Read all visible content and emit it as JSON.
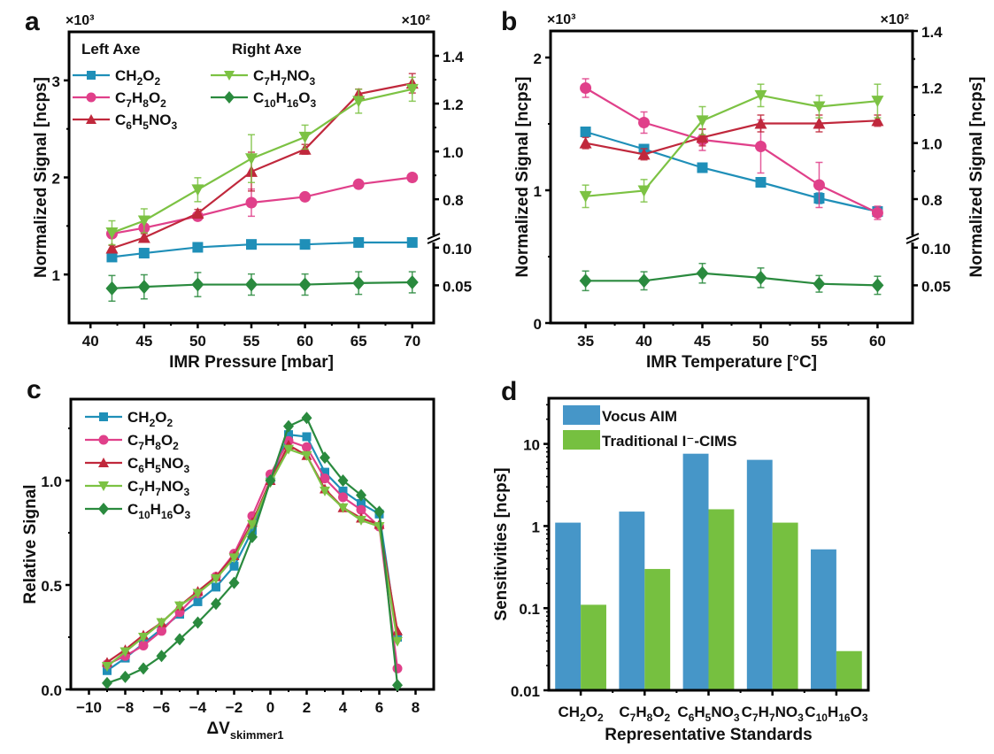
{
  "figure": {
    "panels": [
      "a",
      "b",
      "c",
      "d"
    ]
  },
  "colors": {
    "CH2O2": "#1f8fb8",
    "C7H8O2": "#e0408a",
    "C6H5NO3": "#c0283c",
    "C7H7NO3": "#7cc243",
    "C10H16O3": "#2a8a3e",
    "vocus": "#4696c8",
    "traditional": "#76c040"
  },
  "chart_data": [
    {
      "panel": "a",
      "type": "line",
      "title": "",
      "xlabel": "IMR Pressure [mbar]",
      "ylabel": "Normalized Signal [ncps]",
      "y_multiplier_left": "×10³",
      "y_multiplier_right": "×10²",
      "xlim": [
        38,
        72
      ],
      "x_ticks": [
        40,
        45,
        50,
        55,
        60,
        65,
        70
      ],
      "ylim_left": [
        0.5,
        3.5
      ],
      "y_ticks_left": [
        1,
        2,
        3
      ],
      "ylim_right_upper": [
        0.66,
        1.5
      ],
      "y_ticks_right_upper": [
        0.8,
        1.0,
        1.2,
        1.4
      ],
      "ylim_right_lower": [
        0.0,
        0.108
      ],
      "y_ticks_right_lower": [
        0.05,
        0.1
      ],
      "right_axis_break": true,
      "legend_headers": [
        "Left Axe",
        "Right Axe"
      ],
      "x": [
        42,
        45,
        50,
        55,
        60,
        65,
        70
      ],
      "series": [
        {
          "name": "CH2O2",
          "label_parts": [
            [
              "CH",
              ""
            ],
            [
              "2",
              "sub"
            ],
            [
              "O",
              ""
            ],
            [
              "2",
              "sub"
            ]
          ],
          "axis": "left",
          "marker": "square",
          "values": [
            1.18,
            1.22,
            1.28,
            1.31,
            1.31,
            1.33,
            1.33
          ],
          "err": [
            0.02,
            0.02,
            0.02,
            0.02,
            0.02,
            0.02,
            0.02
          ]
        },
        {
          "name": "C7H8O2",
          "label_parts": [
            [
              "C",
              ""
            ],
            [
              "7",
              "sub"
            ],
            [
              "H",
              ""
            ],
            [
              "8",
              "sub"
            ],
            [
              "O",
              ""
            ],
            [
              "2",
              "sub"
            ]
          ],
          "axis": "left",
          "marker": "circle",
          "values": [
            1.42,
            1.48,
            1.6,
            1.74,
            1.8,
            1.93,
            2.0
          ],
          "err": [
            0.03,
            0.03,
            0.03,
            0.14,
            0.03,
            0.03,
            0.04
          ]
        },
        {
          "name": "C6H5NO3",
          "label_parts": [
            [
              "C",
              ""
            ],
            [
              "6",
              "sub"
            ],
            [
              "H",
              ""
            ],
            [
              "5",
              "sub"
            ],
            [
              "NO",
              ""
            ],
            [
              "3",
              "sub"
            ]
          ],
          "axis": "left",
          "marker": "triangle-up",
          "values": [
            1.27,
            1.38,
            1.63,
            2.06,
            2.29,
            2.86,
            2.97
          ],
          "err": [
            0.03,
            0.04,
            0.04,
            0.2,
            0.05,
            0.05,
            0.1
          ]
        },
        {
          "name": "C7H7NO3",
          "label_parts": [
            [
              "C",
              ""
            ],
            [
              "7",
              "sub"
            ],
            [
              "H",
              ""
            ],
            [
              "7",
              "sub"
            ],
            [
              "NO",
              ""
            ],
            [
              "3",
              "sub"
            ]
          ],
          "axis": "right-upper",
          "marker": "triangle-down",
          "values": [
            0.66,
            0.71,
            0.84,
            0.97,
            1.06,
            1.21,
            1.26
          ],
          "err": [
            0.05,
            0.05,
            0.05,
            0.1,
            0.05,
            0.05,
            0.05
          ]
        },
        {
          "name": "C10H16O3",
          "label_parts": [
            [
              "C",
              ""
            ],
            [
              "10",
              "sub"
            ],
            [
              "H",
              ""
            ],
            [
              "16",
              "sub"
            ],
            [
              "O",
              ""
            ],
            [
              "3",
              "sub"
            ]
          ],
          "axis": "right-lower",
          "marker": "diamond",
          "values": [
            0.046,
            0.048,
            0.051,
            0.051,
            0.051,
            0.053,
            0.054
          ],
          "err": [
            0.017,
            0.016,
            0.016,
            0.014,
            0.014,
            0.015,
            0.014
          ]
        }
      ]
    },
    {
      "panel": "b",
      "type": "line",
      "title": "",
      "xlabel": "IMR Temperature [°C]",
      "ylabel": "Normalized Signal [ncps]",
      "ylabel_right": "Normalized Signal [ncps]",
      "y_multiplier_left": "×10³",
      "y_multiplier_right": "×10²",
      "xlim": [
        32,
        63
      ],
      "x_ticks": [
        35,
        40,
        45,
        50,
        55,
        60
      ],
      "ylim_left": [
        0,
        2.2
      ],
      "y_ticks_left": [
        0,
        1,
        2
      ],
      "ylim_right_upper": [
        0.68,
        1.4
      ],
      "y_ticks_right_upper": [
        0.8,
        1.0,
        1.2,
        1.4
      ],
      "ylim_right_lower": [
        0.0,
        0.108
      ],
      "y_ticks_right_lower": [
        0.05,
        0.1
      ],
      "right_axis_break": true,
      "x": [
        35,
        40,
        45,
        50,
        55,
        60
      ],
      "series": [
        {
          "name": "CH2O2",
          "axis": "left",
          "marker": "square",
          "values": [
            1.44,
            1.31,
            1.17,
            1.06,
            0.94,
            0.84
          ],
          "err": [
            0.03,
            0.03,
            0.02,
            0.02,
            0.04,
            0.02
          ]
        },
        {
          "name": "C7H8O2",
          "axis": "left",
          "marker": "circle",
          "values": [
            1.77,
            1.51,
            1.38,
            1.33,
            1.04,
            0.83
          ],
          "err": [
            0.07,
            0.08,
            0.08,
            0.2,
            0.17,
            0.05
          ]
        },
        {
          "name": "C6H5NO3",
          "axis": "right-upper",
          "marker": "triangle-up",
          "values": [
            1.0,
            0.96,
            1.02,
            1.07,
            1.07,
            1.08
          ],
          "err": [
            0.02,
            0.02,
            0.03,
            0.03,
            0.03,
            0.02
          ]
        },
        {
          "name": "C7H7NO3",
          "axis": "right-upper",
          "marker": "triangle-down",
          "values": [
            0.81,
            0.83,
            1.08,
            1.17,
            1.13,
            1.15
          ],
          "err": [
            0.04,
            0.04,
            0.05,
            0.04,
            0.04,
            0.06
          ]
        },
        {
          "name": "C10H16O3",
          "axis": "right-lower",
          "marker": "diamond",
          "values": [
            0.056,
            0.056,
            0.066,
            0.06,
            0.052,
            0.05
          ],
          "err": [
            0.013,
            0.012,
            0.013,
            0.013,
            0.011,
            0.012
          ]
        }
      ]
    },
    {
      "panel": "c",
      "type": "line",
      "title": "",
      "xlabel_main": "ΔV",
      "xlabel_sub": "skimmer1",
      "ylabel": "Relative Signal",
      "xlim": [
        -11,
        9
      ],
      "x_ticks": [
        -10,
        -8,
        -6,
        -4,
        -2,
        0,
        2,
        4,
        6,
        8
      ],
      "x_tick_labels": [
        "−10",
        "−8",
        "−6",
        "−4",
        "−2",
        "0",
        "2",
        "4",
        "6",
        "8"
      ],
      "ylim": [
        0,
        1.39
      ],
      "y_ticks": [
        0.0,
        0.5,
        1.0
      ],
      "y_tick_labels": [
        "0.0",
        "0.5",
        "1.0"
      ],
      "x": [
        -9,
        -8,
        -7,
        -6,
        -5,
        -4,
        -3,
        -2,
        -1,
        0,
        1,
        2,
        3,
        4,
        5,
        6,
        7
      ],
      "series": [
        {
          "name": "CH2O2",
          "marker": "square",
          "values": [
            0.09,
            0.15,
            0.22,
            0.29,
            0.36,
            0.42,
            0.49,
            0.59,
            0.76,
            1.0,
            1.22,
            1.21,
            1.04,
            0.95,
            0.89,
            0.84,
            0.25
          ]
        },
        {
          "name": "C7H8O2",
          "marker": "circle",
          "values": [
            0.12,
            0.16,
            0.21,
            0.28,
            0.37,
            0.46,
            0.54,
            0.65,
            0.83,
            1.03,
            1.19,
            1.16,
            1.01,
            0.92,
            0.86,
            0.78,
            0.1
          ]
        },
        {
          "name": "C6H5NO3",
          "marker": "triangle-up",
          "values": [
            0.13,
            0.19,
            0.26,
            0.32,
            0.4,
            0.47,
            0.54,
            0.64,
            0.8,
            1.0,
            1.17,
            1.12,
            0.96,
            0.87,
            0.82,
            0.79,
            0.28
          ]
        },
        {
          "name": "C7H7NO3",
          "marker": "triangle-down",
          "values": [
            0.11,
            0.18,
            0.25,
            0.32,
            0.4,
            0.46,
            0.53,
            0.63,
            0.79,
            0.99,
            1.15,
            1.12,
            0.95,
            0.87,
            0.81,
            0.78,
            0.23
          ]
        },
        {
          "name": "C10H16O3",
          "marker": "diamond",
          "values": [
            0.03,
            0.06,
            0.1,
            0.16,
            0.24,
            0.32,
            0.41,
            0.51,
            0.73,
            1.0,
            1.26,
            1.3,
            1.11,
            1.0,
            0.93,
            0.85,
            0.02
          ]
        }
      ]
    },
    {
      "panel": "d",
      "type": "bar",
      "title": "",
      "xlabel": "Representative Standards",
      "ylabel": "Sensitivities [ncps]",
      "yscale": "log",
      "ylim": [
        0.01,
        36
      ],
      "y_ticks": [
        0.01,
        0.1,
        1,
        10
      ],
      "y_tick_labels": [
        "0.01",
        "0.1",
        "1",
        "10"
      ],
      "categories": [
        "CH2O2",
        "C7H8O2",
        "C6H5NO3",
        "C7H7NO3",
        "C10H16O3"
      ],
      "series": [
        {
          "name": "Vocus AIM",
          "values": [
            1.1,
            1.5,
            7.6,
            6.4,
            0.52
          ]
        },
        {
          "name": "Traditional I⁻-CIMS",
          "values": [
            0.11,
            0.3,
            1.6,
            1.1,
            0.03
          ]
        }
      ],
      "legend": [
        "Vocus AIM",
        "Traditional I⁻-CIMS"
      ]
    }
  ]
}
